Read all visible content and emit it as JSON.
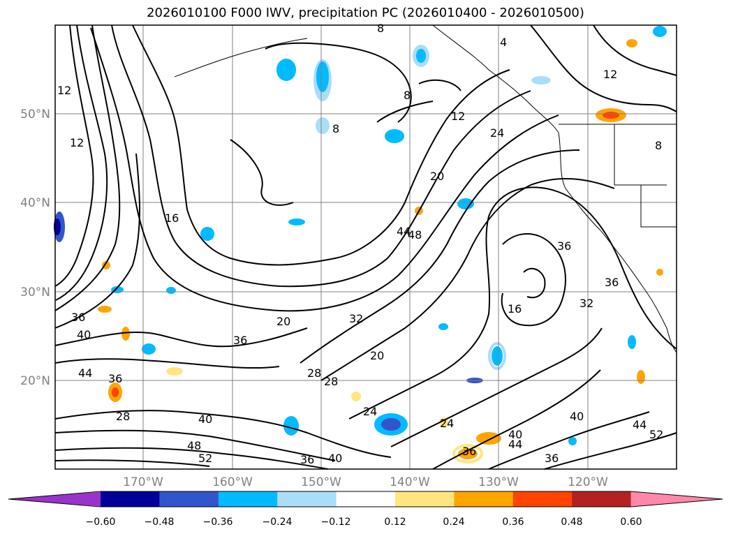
{
  "title": "2026010100 F000 IWV, precipitation PC (2026010400 - 2026010500)",
  "map": {
    "lat_labels": [
      "50°N",
      "40°N",
      "30°N",
      "20°N"
    ],
    "lon_labels": [
      "170°W",
      "160°W",
      "150°W",
      "140°W",
      "130°W",
      "120°W"
    ],
    "contour_labels": [
      "8",
      "4",
      "12",
      "12",
      "12",
      "24",
      "20",
      "16",
      "44",
      "48",
      "36",
      "16",
      "32",
      "36",
      "20",
      "32",
      "20",
      "36",
      "28",
      "28",
      "36",
      "40",
      "44",
      "36",
      "24",
      "24",
      "40",
      "44",
      "40",
      "36",
      "36",
      "36",
      "40",
      "48",
      "52",
      "28",
      "40",
      "44",
      "52",
      "8",
      "8",
      "8",
      "12"
    ]
  },
  "colorbar": {
    "tick_labels": [
      "−0.60",
      "−0.48",
      "−0.36",
      "−0.24",
      "−0.12",
      "0.12",
      "0.24",
      "0.36",
      "0.48",
      "0.60"
    ],
    "colors": [
      "#9933cc",
      "#000099",
      "#3355cc",
      "#00bbff",
      "#aaddf8",
      "#ffffff",
      "#ffe680",
      "#ffa500",
      "#ff4400",
      "#b22222",
      "#ff88aa"
    ]
  }
}
